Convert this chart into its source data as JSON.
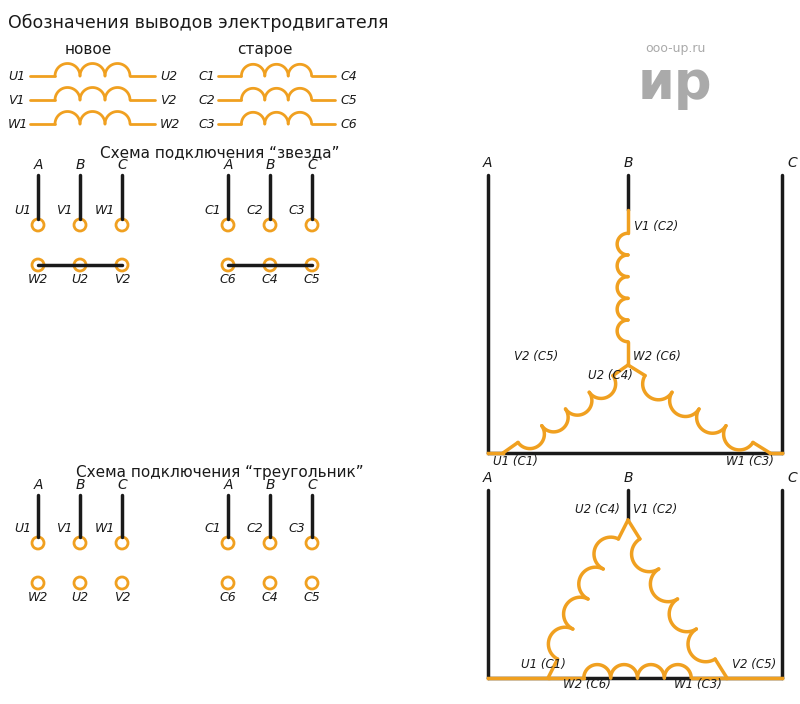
{
  "bg_color": "#ffffff",
  "orange": "#f0a020",
  "black": "#1a1a1a",
  "gray": "#aaaaaa",
  "title": "Обозначения выводов электродвигателя",
  "new_label": "новое",
  "old_label": "старое",
  "watermark1": "ooo-up.ru",
  "watermark2": "ир",
  "star_title": "Схема подключения “звезда”",
  "triangle_title": "Схема подключения “треугольник”"
}
